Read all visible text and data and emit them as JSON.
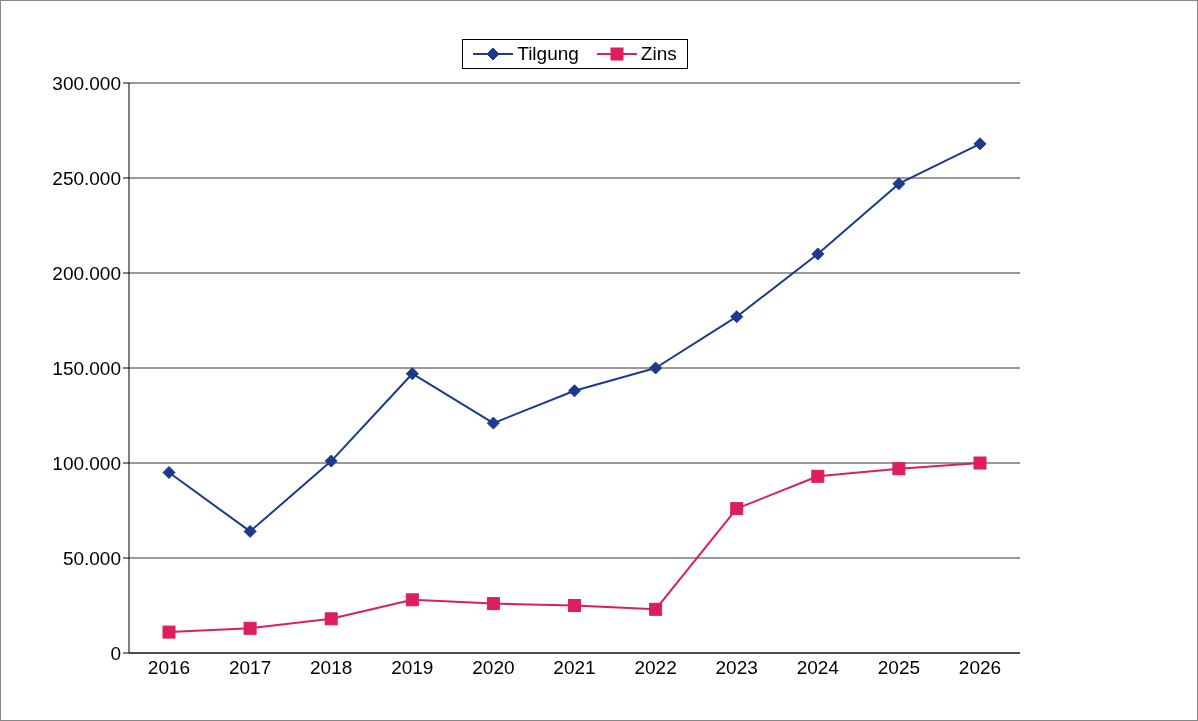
{
  "chart_data": {
    "type": "line",
    "categories": [
      "2016",
      "2017",
      "2018",
      "2019",
      "2020",
      "2021",
      "2022",
      "2023",
      "2024",
      "2025",
      "2026"
    ],
    "series": [
      {
        "name": "Tilgung",
        "color": "#1b3a8c",
        "marker": "diamond",
        "values": [
          95000,
          64000,
          101000,
          147000,
          121000,
          138000,
          150000,
          177000,
          210000,
          247000,
          268000
        ]
      },
      {
        "name": "Zins",
        "color": "#dc1f5c",
        "marker": "square",
        "values": [
          11000,
          13000,
          18000,
          28000,
          26000,
          25000,
          23000,
          76000,
          93000,
          97000,
          100000
        ]
      }
    ],
    "ylim": [
      0,
      300000
    ],
    "yticks": [
      {
        "value": 0,
        "label": "0"
      },
      {
        "value": 50000,
        "label": "50.000"
      },
      {
        "value": 100000,
        "label": "100.000"
      },
      {
        "value": 150000,
        "label": "150.000"
      },
      {
        "value": 200000,
        "label": "200.000"
      },
      {
        "value": 250000,
        "label": "250.000"
      },
      {
        "value": 300000,
        "label": "300.000"
      }
    ],
    "grid": "y",
    "legend": "top",
    "line_style": "solid"
  }
}
